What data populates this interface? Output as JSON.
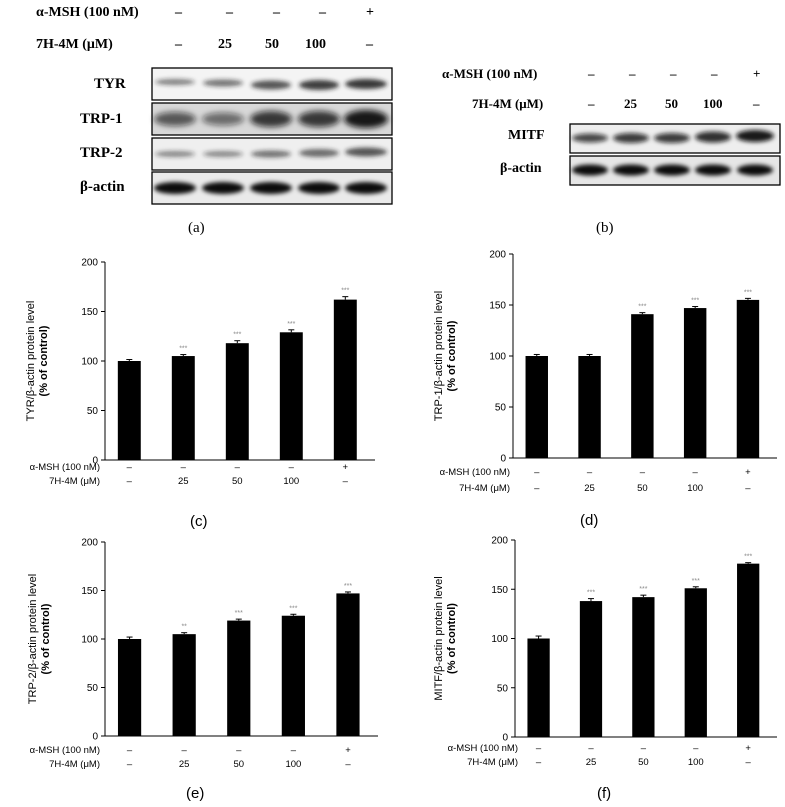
{
  "panel_a": {
    "caption": "(a)",
    "header_rows": [
      {
        "label": "α-MSH (100 nM)",
        "values": [
          "–",
          "–",
          "–",
          "–",
          "+"
        ]
      },
      {
        "label": "7H-4M (μM)",
        "values": [
          "–",
          "25",
          "50",
          "100",
          "–"
        ]
      }
    ],
    "blots": [
      "TYR",
      "TRP-1",
      "TRP-2",
      "β-actin"
    ]
  },
  "panel_b": {
    "caption": "(b)",
    "header_rows": [
      {
        "label": "α-MSH (100 nM)",
        "values": [
          "–",
          "–",
          "–",
          "–",
          "+"
        ]
      },
      {
        "label": "7H-4M (μM)",
        "values": [
          "–",
          "25",
          "50",
          "100",
          "–"
        ]
      }
    ],
    "blots": [
      "MITF",
      "β-actin"
    ]
  },
  "chart_data": [
    {
      "id": "c",
      "caption": "(c)",
      "type": "bar",
      "ylabel": "TYR/β-actin protein level (% of control)",
      "ylim": [
        0,
        200
      ],
      "yticks": [
        0,
        50,
        100,
        150,
        200
      ],
      "values": [
        100,
        105,
        118,
        129,
        162
      ],
      "errors": [
        1.5,
        1.5,
        2.5,
        2.5,
        3
      ],
      "significance": [
        "",
        "***",
        "***",
        "***",
        "***"
      ],
      "rows": [
        {
          "label": "α-MSH (100 nM)",
          "values": [
            "–",
            "–",
            "–",
            "–",
            "+"
          ]
        },
        {
          "label": "7H-4M (μM)",
          "values": [
            "–",
            "25",
            "50",
            "100",
            "–"
          ]
        }
      ]
    },
    {
      "id": "d",
      "caption": "(d)",
      "type": "bar",
      "ylabel": "TRP-1/β-actin protein level (% of control)",
      "ylim": [
        0,
        200
      ],
      "yticks": [
        0,
        50,
        100,
        150,
        200
      ],
      "values": [
        100,
        100,
        141,
        147,
        155
      ],
      "errors": [
        1.5,
        1.5,
        1.5,
        1.5,
        1.5
      ],
      "significance": [
        "",
        "",
        "***",
        "***",
        "***"
      ],
      "rows": [
        {
          "label": "α-MSH (100 nM)",
          "values": [
            "–",
            "–",
            "–",
            "–",
            "+"
          ]
        },
        {
          "label": "7H-4M (μM)",
          "values": [
            "–",
            "25",
            "50",
            "100",
            "–"
          ]
        }
      ]
    },
    {
      "id": "e",
      "caption": "(e)",
      "type": "bar",
      "ylabel": "TRP-2/β-actin protein level (% of control)",
      "ylim": [
        0,
        200
      ],
      "yticks": [
        0,
        50,
        100,
        150,
        200
      ],
      "values": [
        100,
        105,
        119,
        124,
        147
      ],
      "errors": [
        2,
        1.5,
        1.5,
        1.5,
        1.5
      ],
      "significance": [
        "",
        "**",
        "***",
        "***",
        "***"
      ],
      "rows": [
        {
          "label": "α-MSH (100 nM)",
          "values": [
            "–",
            "–",
            "–",
            "–",
            "+"
          ]
        },
        {
          "label": "7H-4M (μM)",
          "values": [
            "–",
            "25",
            "50",
            "100",
            "–"
          ]
        }
      ]
    },
    {
      "id": "f",
      "caption": "(f)",
      "type": "bar",
      "ylabel": "MITF/β-actin protein level (% of control)",
      "ylim": [
        0,
        200
      ],
      "yticks": [
        0,
        50,
        100,
        150,
        200
      ],
      "values": [
        100,
        138,
        142,
        151,
        176
      ],
      "errors": [
        2.5,
        2.5,
        2,
        1.5,
        1
      ],
      "significance": [
        "",
        "***",
        "***",
        "***",
        "***"
      ],
      "rows": [
        {
          "label": "α-MSH (100 nM)",
          "values": [
            "–",
            "–",
            "–",
            "–",
            "+"
          ]
        },
        {
          "label": "7H-4M (μM)",
          "values": [
            "–",
            "25",
            "50",
            "100",
            "–"
          ]
        }
      ]
    }
  ]
}
